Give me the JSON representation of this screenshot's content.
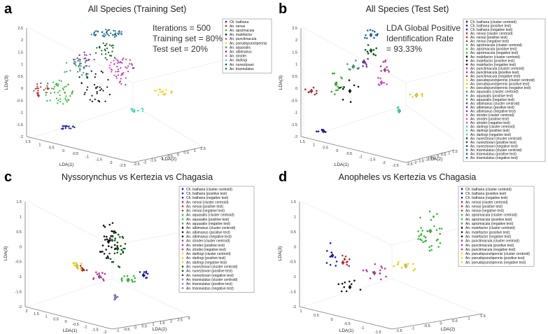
{
  "panels": [
    {
      "letter": "a",
      "title": "All Species (Training Set)"
    },
    {
      "letter": "b",
      "title": "All Species (Test Set)"
    },
    {
      "letter": "c",
      "title": "Nyssorynchus vs Kertezia vs Chagasia"
    },
    {
      "letter": "d",
      "title": "Anopheles vs Kertezia vs Chagasia"
    }
  ],
  "annotations": {
    "a_iterations": "Iterations = 500",
    "a_training": "Training set = 80%",
    "a_test": "Test set = 20%",
    "b_line1": "LDA Global Positive",
    "b_line2": "Identification Rate",
    "b_line3": "= 93.33%"
  },
  "chart_data": [
    {
      "type": "scatter",
      "title": "All Species (Training Set)",
      "xlabel": "LDA(1)",
      "ylabel": "LDA(2)",
      "zlabel": "LDA(3)",
      "zticks": [
        "2.5",
        "2",
        "1.5",
        "1",
        "0.5",
        "0",
        "-0.5",
        "-1",
        "-1.5",
        "-2"
      ],
      "xticks": [
        "1.5",
        "1",
        "0.5",
        "0",
        "-0.5",
        "-1",
        "-1.5",
        "-2",
        "-2.5"
      ],
      "yticks": [
        "-2.5",
        "-2",
        "-1.5",
        "-1",
        "-0.5",
        "0",
        "0.5",
        "1",
        "1.5"
      ],
      "legend": [
        {
          "label": "Ch. bathana",
          "color": "#1a1aa8"
        },
        {
          "label": "An. neivai",
          "color": "#c0282e"
        },
        {
          "label": "An. apicimacula",
          "color": "#33b833"
        },
        {
          "label": "An. malefactor",
          "color": "#111111"
        },
        {
          "label": "An. punctimacula",
          "color": "#b53a9c"
        },
        {
          "label": "An. pseudopunctipennis",
          "color": "#e8d400"
        },
        {
          "label": "An. aquasalis",
          "color": "#3a9a78"
        },
        {
          "label": "An. albimanus",
          "color": "#6c3aa0"
        },
        {
          "label": "An. strodei",
          "color": "#d84cc8"
        },
        {
          "label": "An. darlingi",
          "color": "#38d8b0"
        },
        {
          "label": "An. nuneztovari",
          "color": "#0b5a1a"
        },
        {
          "label": "An. triannulatus",
          "color": "#1a6b8a"
        }
      ]
    },
    {
      "type": "scatter",
      "title": "All Species (Test Set)",
      "xlabel": "LDA(1)",
      "ylabel": "LDA(2)",
      "zlabel": "LDA(3)",
      "zticks": [
        "2.5",
        "2",
        "1.5",
        "1",
        "0.5",
        "0",
        "-0.5",
        "-1",
        "-1.5",
        "-2"
      ],
      "xticks": [
        "1.5",
        "1",
        "0.5",
        "0",
        "-0.5",
        "-1",
        "-1.5",
        "-2",
        "-2.5"
      ],
      "yticks": [
        "-2.5",
        "-2",
        "-1.5",
        "-1",
        "-0.5",
        "0",
        "0.5",
        "1",
        "1.5"
      ],
      "legend": [
        {
          "label": "Ch. bathana (cluster centroid)",
          "color": "#1a1aa8"
        },
        {
          "label": "Ch. bathana (positive test)",
          "color": "#1a1aa8"
        },
        {
          "label": "Ch. bathana (negative test)",
          "color": "#1a1aa8"
        },
        {
          "label": "An. neivai (cluster centroid)",
          "color": "#c0282e"
        },
        {
          "label": "An. neivai (positive test)",
          "color": "#c0282e"
        },
        {
          "label": "An. neivai (negative test)",
          "color": "#c0282e"
        },
        {
          "label": "An. apicimacula (cluster centroid)",
          "color": "#33b833"
        },
        {
          "label": "An. apicimacula (positive test)",
          "color": "#33b833"
        },
        {
          "label": "An. apicimacula (negative test)",
          "color": "#33b833"
        },
        {
          "label": "An. malefactor (cluster centroid)",
          "color": "#111111"
        },
        {
          "label": "An. malefactor (positive test)",
          "color": "#111111"
        },
        {
          "label": "An. malefactor (negative test)",
          "color": "#111111"
        },
        {
          "label": "An. punctimacula (cluster centroid)",
          "color": "#b53a9c"
        },
        {
          "label": "An. punctimacula (positive test)",
          "color": "#b53a9c"
        },
        {
          "label": "An. punctimacula (negative test)",
          "color": "#b53a9c"
        },
        {
          "label": "An. pseudopunctipennis (cluster centroid)",
          "color": "#e8d400"
        },
        {
          "label": "An. pseudopunctipennis (positive test)",
          "color": "#e8d400"
        },
        {
          "label": "An. pseudopunctipennis (negative test)",
          "color": "#e8d400"
        },
        {
          "label": "An. aquasalis (cluster centroid)",
          "color": "#3a9a78"
        },
        {
          "label": "An. aquasalis (positive test)",
          "color": "#3a9a78"
        },
        {
          "label": "An. aquasalis (negative test)",
          "color": "#3a9a78"
        },
        {
          "label": "An. albimanus (cluster centroid)",
          "color": "#6c3aa0"
        },
        {
          "label": "An. albimanus (positive test)",
          "color": "#6c3aa0"
        },
        {
          "label": "An. albimanus (negative test)",
          "color": "#6c3aa0"
        },
        {
          "label": "An. strodei (cluster centroid)",
          "color": "#d84cc8"
        },
        {
          "label": "An. strodei (positive test)",
          "color": "#d84cc8"
        },
        {
          "label": "An. strodei (negative test)",
          "color": "#d84cc8"
        },
        {
          "label": "An. darlingi (cluster centroid)",
          "color": "#38d8b0"
        },
        {
          "label": "An. darlingi (positive test)",
          "color": "#38d8b0"
        },
        {
          "label": "An. darlingi (negative test)",
          "color": "#38d8b0"
        },
        {
          "label": "An. nuneztovari (cluster centroid)",
          "color": "#0b5a1a"
        },
        {
          "label": "An. nuneztovari (positive test)",
          "color": "#0b5a1a"
        },
        {
          "label": "An. nuneztovari (negative test)",
          "color": "#0b5a1a"
        },
        {
          "label": "An. triannulatus (cluster centroid)",
          "color": "#1a6b8a"
        },
        {
          "label": "An. triannulatus (positive test)",
          "color": "#1a6b8a"
        },
        {
          "label": "An. triannulatus (negative test)",
          "color": "#1a6b8a"
        }
      ]
    },
    {
      "type": "scatter",
      "title": "Nyssorynchus vs Kertezia vs Chagasia",
      "xlabel": "LDA(1)",
      "ylabel": "LDA(2)",
      "zlabel": "LDA(3)",
      "zticks": [
        "1.5",
        "1",
        "0.5",
        "0",
        "-0.5",
        "-1",
        "-1.5",
        "-2"
      ],
      "xticks": [
        "2",
        "1.5",
        "1",
        "0.5",
        "0",
        "-0.5",
        "-1",
        "-1.5",
        "-2"
      ],
      "yticks": [
        "-1",
        "-0.5",
        "0",
        "0.5",
        "1",
        "1.5",
        "2",
        "2.5",
        "3"
      ],
      "legend": [
        {
          "label": "Ch. bathana (cluster centroid)",
          "color": "#1a1aa8"
        },
        {
          "label": "Ch. bathana (positive test)",
          "color": "#1a1aa8"
        },
        {
          "label": "Ch. bathana (negative test)",
          "color": "#1a1aa8"
        },
        {
          "label": "An. neivai (cluster centroid)",
          "color": "#c0282e"
        },
        {
          "label": "An. neivai (positive test)",
          "color": "#c0282e"
        },
        {
          "label": "An. neivai (negative test)",
          "color": "#c0282e"
        },
        {
          "label": "An. aquasalis (cluster centroid)",
          "color": "#33b833"
        },
        {
          "label": "An. aquasalis (positive test)",
          "color": "#33b833"
        },
        {
          "label": "An. aquasalis (negative test)",
          "color": "#33b833"
        },
        {
          "label": "An. albimanus (cluster centroid)",
          "color": "#111111"
        },
        {
          "label": "An. albimanus (positive test)",
          "color": "#111111"
        },
        {
          "label": "An. albimanus (negative test)",
          "color": "#111111"
        },
        {
          "label": "An. strodei (cluster centroid)",
          "color": "#b53a9c"
        },
        {
          "label": "An. strodei (positive test)",
          "color": "#b53a9c"
        },
        {
          "label": "An. strodei (negative test)",
          "color": "#b53a9c"
        },
        {
          "label": "An. darlingi (cluster centroid)",
          "color": "#e8d400"
        },
        {
          "label": "An. darlingi (positive test)",
          "color": "#e8d400"
        },
        {
          "label": "An. darlingi (negative test)",
          "color": "#e8d400"
        },
        {
          "label": "An. nuneztovari (cluster centroid)",
          "color": "#0b5a1a"
        },
        {
          "label": "An. nuneztovari (positive test)",
          "color": "#0b5a1a"
        },
        {
          "label": "An. nuneztovari (negative test)",
          "color": "#0b5a1a"
        },
        {
          "label": "An. triannulatus (cluster centroid)",
          "color": "#7a7ad8"
        },
        {
          "label": "An. triannulatus (positive test)",
          "color": "#7a7ad8"
        },
        {
          "label": "An. triannulatus (negative test)",
          "color": "#7a7ad8"
        }
      ]
    },
    {
      "type": "scatter",
      "title": "Anopheles vs Kertezia vs Chagasia",
      "xlabel": "LDA(1)",
      "ylabel": "LDA(2)",
      "zlabel": "LDA(3)",
      "zticks": [
        "1.5",
        "1",
        "0.5",
        "0",
        "-0.5",
        "-1",
        "-1.5",
        "-2"
      ],
      "xticks": [
        "1",
        "0.5",
        "0",
        "-0.5",
        "-1",
        "-1.5"
      ],
      "yticks": [
        "-1.5",
        "-1",
        "-0.5",
        "0",
        "0.5",
        "1",
        "1.5"
      ],
      "legend": [
        {
          "label": "Ch. bathana (cluster centroid)",
          "color": "#1a1aa8"
        },
        {
          "label": "Ch. bathana (positive test)",
          "color": "#1a1aa8"
        },
        {
          "label": "Ch. bathana (negative test)",
          "color": "#1a1aa8"
        },
        {
          "label": "An. neivai (cluster centroid)",
          "color": "#c0282e"
        },
        {
          "label": "An. neivai (positive test)",
          "color": "#c0282e"
        },
        {
          "label": "An. neivai (negative test)",
          "color": "#c0282e"
        },
        {
          "label": "An. apicimacula (cluster centroid)",
          "color": "#33b833"
        },
        {
          "label": "An. apicimacula (positive test)",
          "color": "#33b833"
        },
        {
          "label": "An. apicimacula (negative test)",
          "color": "#33b833"
        },
        {
          "label": "An. malefactor (cluster centroid)",
          "color": "#111111"
        },
        {
          "label": "An. malefactor (positive test)",
          "color": "#111111"
        },
        {
          "label": "An. malefactor (negative test)",
          "color": "#111111"
        },
        {
          "label": "An. punctimacula (cluster centroid)",
          "color": "#b53a9c"
        },
        {
          "label": "An. punctimacula (positive test)",
          "color": "#b53a9c"
        },
        {
          "label": "An. punctimacula (negative test)",
          "color": "#b53a9c"
        },
        {
          "label": "An. pseudopunctipennis (cluster centroid)",
          "color": "#e8d400"
        },
        {
          "label": "An. pseudopunctipennis (positive test)",
          "color": "#e8d400"
        },
        {
          "label": "An. pseudopunctipennis (negative test)",
          "color": "#e8d400"
        }
      ]
    }
  ]
}
